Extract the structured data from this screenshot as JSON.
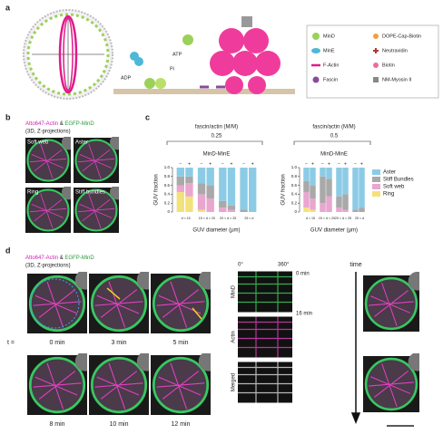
{
  "panel_labels": [
    "a",
    "b",
    "c",
    "d"
  ],
  "panel_a": {
    "reaction_labels": [
      "ADP",
      "Pi",
      "ATP"
    ],
    "legend": [
      "MinD",
      "DOPE-Cap-Biotin",
      "MinE",
      "Neutravidin",
      "F-Actin",
      "Biotin",
      "Fascin",
      "NM-Myosin II"
    ]
  },
  "panel_b": {
    "title_actin": "Atto647-Actin",
    "title_amp": "&",
    "title_mind": "EGFP-MinD",
    "subtitle": "(3D, Z-projections)",
    "images": [
      "Soft web",
      "Aster",
      "Ring",
      "Stiff bundles"
    ]
  },
  "chart_data": [
    {
      "type": "stacked_bar",
      "title": "fascin/actin (M/M)",
      "subtitle": "0.25",
      "group_label": "MinD-MinE",
      "ylabel": "GUV fraction",
      "xlabel": "GUV diameter (μm)",
      "categories": [
        "d < 15",
        null,
        "15 < d < 20",
        null,
        "20 < d < 25",
        null,
        "25 < d",
        null
      ],
      "bar_labels": [
        "−",
        "+",
        "−",
        "+",
        "−",
        "+",
        "−",
        "+"
      ],
      "ylim": [
        0,
        1
      ],
      "yticks": [
        0,
        0.2,
        0.4,
        0.6,
        0.8,
        {
          "value": 1,
          "label": "1.0"
        }
      ],
      "series": [
        {
          "name": "Ring",
          "color": "#f3e27a",
          "values": [
            0.45,
            0.35,
            0.05,
            0,
            0,
            0,
            0,
            0
          ]
        },
        {
          "name": "Soft web",
          "color": "#e9a6cf",
          "values": [
            0.15,
            0.3,
            0.35,
            0.3,
            0.1,
            0.05,
            0,
            0
          ]
        },
        {
          "name": "Stiff Bundles",
          "color": "#a9a9a9",
          "values": [
            0.2,
            0.15,
            0.25,
            0.3,
            0.15,
            0.1,
            0.05,
            0
          ]
        },
        {
          "name": "Aster",
          "color": "#8ccbe6",
          "values": [
            0.2,
            0.2,
            0.35,
            0.4,
            0.75,
            0.85,
            0.95,
            1
          ]
        }
      ]
    },
    {
      "type": "stacked_bar",
      "title": "fascin/actin (M/M)",
      "subtitle": "0.5",
      "group_label": "MinD-MinE",
      "ylabel": "GUV fraction",
      "xlabel": "GUV diameter (μm)",
      "categories": [
        "d < 15",
        null,
        "15 < d < 20",
        null,
        "20 < d < 25",
        null,
        "25 < d",
        null
      ],
      "bar_labels": [
        "−",
        "+",
        "−",
        "+",
        "−",
        "+",
        "−",
        "+"
      ],
      "ylim": [
        0,
        1
      ],
      "yticks": [
        0,
        0.2,
        0.4,
        0.6,
        0.8,
        {
          "value": 1,
          "label": "1.0"
        }
      ],
      "series": [
        {
          "color": "#f3e27a",
          "values": [
            0.1,
            0.05,
            0,
            0,
            0,
            0,
            0,
            0
          ]
        },
        {
          "color": "#e9a6cf",
          "values": [
            0.35,
            0.25,
            0.2,
            0.35,
            0.1,
            0.05,
            0,
            0
          ]
        },
        {
          "color": "#a9a9a9",
          "values": [
            0.25,
            0.3,
            0.6,
            0.4,
            0.25,
            0.35,
            0.05,
            0.1
          ]
        },
        {
          "color": "#8ccbe6",
          "values": [
            0.3,
            0.4,
            0.2,
            0.25,
            0.65,
            0.6,
            0.95,
            0.9
          ]
        }
      ]
    }
  ],
  "panel_d": {
    "title_actin": "Atto647-Actin",
    "title_amp": "&",
    "title_mind": "EGFP-MinD",
    "subtitle": "(3D, Z-projections)",
    "t_label": "t =",
    "times": [
      "0 min",
      "3 min",
      "5 min",
      "8 min",
      "10 min",
      "12 min"
    ],
    "kymo_angles": [
      "0°",
      "360°"
    ],
    "kymo_rows": [
      "MinD",
      "Actin",
      "Merged"
    ],
    "kymo_times": [
      "0 min",
      "16 min"
    ],
    "time_axis": "time"
  }
}
